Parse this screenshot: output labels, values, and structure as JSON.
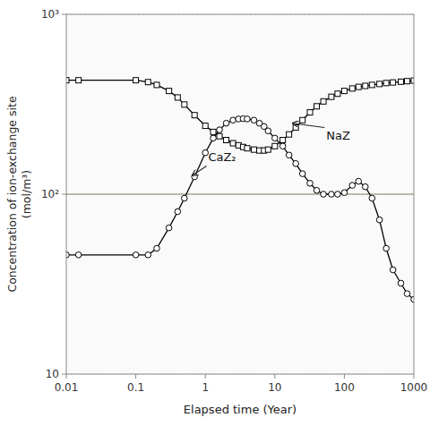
{
  "chart_data": {
    "type": "line",
    "log": true,
    "grid": true,
    "x_label": "Elapsed time (Year)",
    "y_label": "Concentration of ion-exchange site\n(mol/m³)",
    "xlim": [
      0.01,
      1000
    ],
    "ylim": [
      10,
      1000
    ],
    "xticks": [
      0.01,
      0.1,
      1,
      10,
      100,
      1000
    ],
    "yticks": [
      10,
      {
        "value": 100,
        "label": "10²"
      },
      {
        "value": 1000,
        "label": "10³"
      }
    ],
    "x": [
      0.01,
      0.015,
      0.1,
      0.15,
      0.2,
      0.3,
      0.4,
      0.5,
      0.7,
      1.0,
      1.3,
      1.6,
      2.0,
      2.5,
      3.0,
      3.5,
      4.0,
      5.0,
      6.0,
      7.0,
      8.0,
      10.0,
      13.0,
      16.0,
      20.0,
      25.0,
      32.0,
      40.0,
      50.0,
      65.0,
      80.0,
      100.0,
      130.0,
      160.0,
      200.0,
      250.0,
      320.0,
      400.0,
      500.0,
      650.0,
      800.0,
      1000.0
    ],
    "series": [
      {
        "color": "#000000",
        "marker": "square",
        "line_style": "solid",
        "values": [
          430,
          430,
          430,
          420,
          405,
          375,
          345,
          315,
          275,
          240,
          222,
          210,
          200,
          192,
          187,
          183,
          180,
          177,
          175,
          175,
          177,
          185,
          200,
          215,
          235,
          258,
          285,
          308,
          328,
          348,
          362,
          375,
          387,
          395,
          400,
          405,
          410,
          415,
          418,
          422,
          425,
          428
        ]
      },
      {
        "color": "#000000",
        "marker": "circle",
        "line_style": "solid",
        "values": [
          46,
          46,
          46,
          46,
          50,
          65,
          80,
          95,
          125,
          170,
          205,
          228,
          248,
          258,
          262,
          263,
          262,
          258,
          248,
          238,
          225,
          205,
          185,
          165,
          148,
          130,
          115,
          105,
          100,
          100,
          100,
          102,
          112,
          118,
          110,
          95,
          72,
          50,
          38,
          32,
          28,
          26
        ]
      }
    ],
    "reference_lines": [
      {
        "y": 100,
        "color": "#808060"
      }
    ],
    "annotations": [
      {
        "text": "NaZ",
        "x": 55,
        "y": 200,
        "arrow_x": 18,
        "arrow_y": 248
      },
      {
        "text": "CaZ₂",
        "x": 1.1,
        "y": 152,
        "arrow_x": 0.65,
        "arrow_y": 127
      }
    ]
  }
}
